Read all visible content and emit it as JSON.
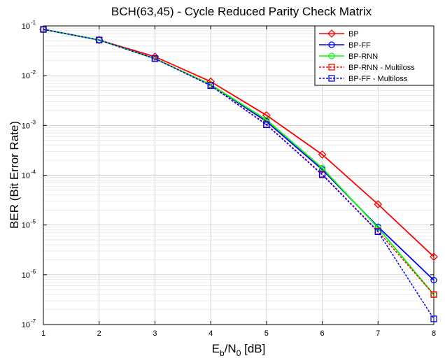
{
  "chart_data": {
    "type": "line",
    "title": "BCH(63,45) - Cycle Reduced Parity Check Matrix",
    "xlabel": {
      "main": "E",
      "sub1": "b",
      "mid": "/N",
      "sub2": "0",
      "tail": " [dB]"
    },
    "ylabel": "BER (Bit Error Rate)",
    "x": [
      1,
      2,
      3,
      4,
      5,
      6,
      7,
      8
    ],
    "xlim": [
      1,
      8
    ],
    "ylim": [
      1e-07,
      0.1
    ],
    "yscale": "log",
    "grid": true,
    "legend_position": "top-right",
    "x_ticks": [
      "1",
      "2",
      "3",
      "4",
      "5",
      "6",
      "7",
      "8"
    ],
    "y_ticks": [
      {
        "value": 1e-07,
        "base": "10",
        "exp": "-7"
      },
      {
        "value": 1e-06,
        "base": "10",
        "exp": "-6"
      },
      {
        "value": 1e-05,
        "base": "10",
        "exp": "-5"
      },
      {
        "value": 0.0001,
        "base": "10",
        "exp": "-4"
      },
      {
        "value": 0.001,
        "base": "10",
        "exp": "-3"
      },
      {
        "value": 0.01,
        "base": "10",
        "exp": "-2"
      },
      {
        "value": 0.1,
        "base": "10",
        "exp": "-1"
      }
    ],
    "series": [
      {
        "name": "BP",
        "color": "#ff0000",
        "marker": "diamond",
        "dash": "solid",
        "values": [
          0.085,
          0.052,
          0.024,
          0.0076,
          0.0016,
          0.00026,
          2.6e-05,
          2.3e-06
        ]
      },
      {
        "name": "BP-FF",
        "color": "#0000ff",
        "marker": "circle",
        "dash": "solid",
        "values": [
          0.085,
          0.052,
          0.022,
          0.0066,
          0.0012,
          0.00013,
          9.2e-06,
          7.8e-07
        ]
      },
      {
        "name": "BP-RNN",
        "color": "#00ff00",
        "marker": "circle",
        "dash": "solid",
        "values": [
          0.085,
          0.052,
          0.022,
          0.0066,
          0.0013,
          0.00014,
          8.8e-06,
          4e-07
        ]
      },
      {
        "name": "BP-RNN - Multiloss",
        "color": "#ff0000",
        "marker": "square",
        "dash": "dashed",
        "values": [
          0.085,
          0.052,
          0.022,
          0.0064,
          0.00105,
          0.000105,
          7.5e-06,
          4e-07
        ]
      },
      {
        "name": "BP-FF - Multiloss",
        "color": "#0000ff",
        "marker": "square",
        "dash": "dashed",
        "values": [
          0.085,
          0.052,
          0.022,
          0.0063,
          0.00103,
          0.000102,
          7.3e-06,
          1.3e-07
        ]
      }
    ]
  }
}
